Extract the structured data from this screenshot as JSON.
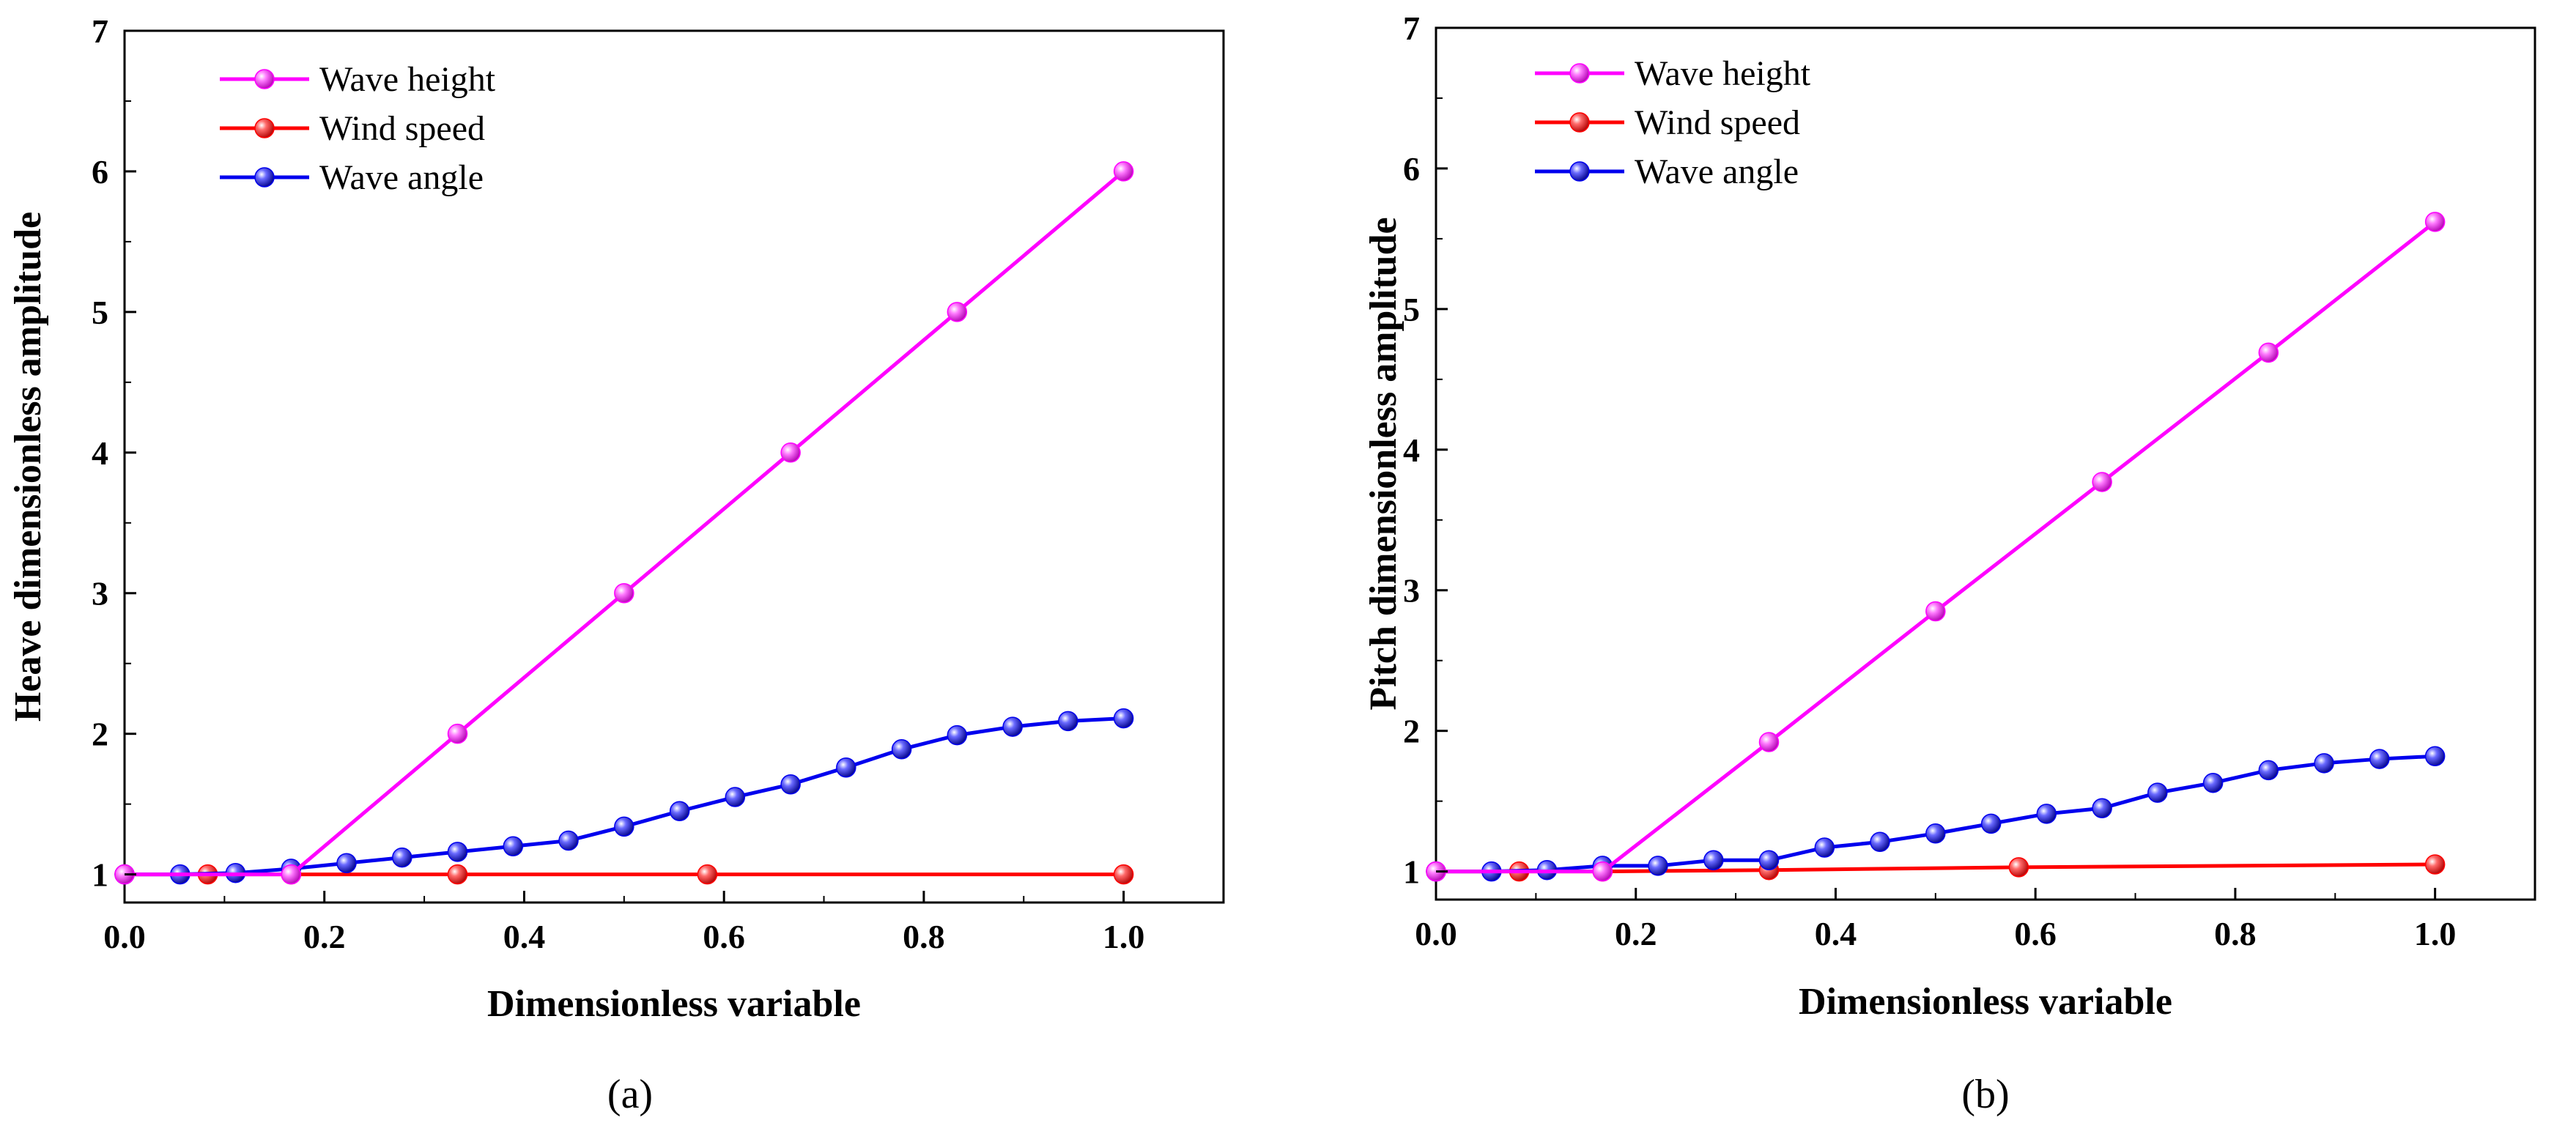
{
  "colors": {
    "wave_height": "#ff00ff",
    "wind_speed": "#ff0000",
    "wave_angle": "#0000ee",
    "axis": "#000000"
  },
  "chart_data": [
    {
      "type": "line",
      "panel_label": "(a)",
      "xlabel": "Dimensionless variable",
      "ylabel": "Heave dimensionless amplitude",
      "xlim": [
        0.0,
        1.1
      ],
      "ylim": [
        0.8,
        7.0
      ],
      "xticks": [
        0.0,
        0.2,
        0.4,
        0.6,
        0.8,
        1.0
      ],
      "xtick_labels": [
        "0.0",
        "0.2",
        "0.4",
        "0.6",
        "0.8",
        "1.0"
      ],
      "yticks": [
        1,
        2,
        3,
        4,
        5,
        6,
        7
      ],
      "ytick_labels": [
        "1",
        "2",
        "3",
        "4",
        "5",
        "6",
        "7"
      ],
      "legend_position": "top-left",
      "series": [
        {
          "name": "Wave height",
          "color_key": "wave_height",
          "x": [
            0.0,
            0.1667,
            0.3333,
            0.5,
            0.6667,
            0.8333,
            1.0
          ],
          "y": [
            1.0,
            1.0,
            2.0,
            3.0,
            4.0,
            5.0,
            6.0
          ]
        },
        {
          "name": "Wind speed",
          "color_key": "wind_speed",
          "x": [
            0.0,
            0.0833,
            0.1667,
            0.3333,
            0.5833,
            1.0
          ],
          "y": [
            1.0,
            1.0,
            1.0,
            1.0,
            1.0,
            1.0
          ]
        },
        {
          "name": "Wave angle",
          "color_key": "wave_angle",
          "x": [
            0.0,
            0.0556,
            0.1111,
            0.1667,
            0.2222,
            0.2778,
            0.3333,
            0.3889,
            0.4444,
            0.5,
            0.5556,
            0.6111,
            0.6667,
            0.7222,
            0.7778,
            0.8333,
            0.8889,
            0.9444,
            1.0
          ],
          "y": [
            1.0,
            1.0,
            1.01,
            1.04,
            1.08,
            1.12,
            1.16,
            1.2,
            1.24,
            1.34,
            1.45,
            1.55,
            1.64,
            1.76,
            1.89,
            1.99,
            2.05,
            2.09,
            2.11
          ]
        }
      ]
    },
    {
      "type": "line",
      "panel_label": "(b)",
      "xlabel": "Dimensionless variable",
      "ylabel": "Pitch dimensionless amplitude",
      "xlim": [
        0.0,
        1.1
      ],
      "ylim": [
        0.8,
        7.0
      ],
      "xticks": [
        0.0,
        0.2,
        0.4,
        0.6,
        0.8,
        1.0
      ],
      "xtick_labels": [
        "0.0",
        "0.2",
        "0.4",
        "0.6",
        "0.8",
        "1.0"
      ],
      "yticks": [
        1,
        2,
        3,
        4,
        5,
        6,
        7
      ],
      "ytick_labels": [
        "1",
        "2",
        "3",
        "4",
        "5",
        "6",
        "7"
      ],
      "legend_position": "top-left",
      "series": [
        {
          "name": "Wave height",
          "color_key": "wave_height",
          "x": [
            0.0,
            0.1667,
            0.3333,
            0.5,
            0.6667,
            0.8333,
            1.0
          ],
          "y": [
            1.0,
            1.0,
            1.92,
            2.85,
            3.77,
            4.69,
            5.62
          ]
        },
        {
          "name": "Wind speed",
          "color_key": "wind_speed",
          "x": [
            0.0,
            0.0833,
            0.1667,
            0.3333,
            0.5833,
            1.0
          ],
          "y": [
            1.0,
            1.0,
            1.0,
            1.01,
            1.03,
            1.05
          ]
        },
        {
          "name": "Wave angle",
          "color_key": "wave_angle",
          "x": [
            0.0,
            0.0556,
            0.1111,
            0.1667,
            0.2222,
            0.2778,
            0.3333,
            0.3889,
            0.4444,
            0.5,
            0.5556,
            0.6111,
            0.6667,
            0.7222,
            0.7778,
            0.8333,
            0.8889,
            0.9444,
            1.0
          ],
          "y": [
            1.0,
            1.0,
            1.01,
            1.04,
            1.04,
            1.08,
            1.08,
            1.17,
            1.21,
            1.27,
            1.34,
            1.41,
            1.45,
            1.56,
            1.63,
            1.72,
            1.77,
            1.8,
            1.82
          ]
        }
      ]
    }
  ]
}
